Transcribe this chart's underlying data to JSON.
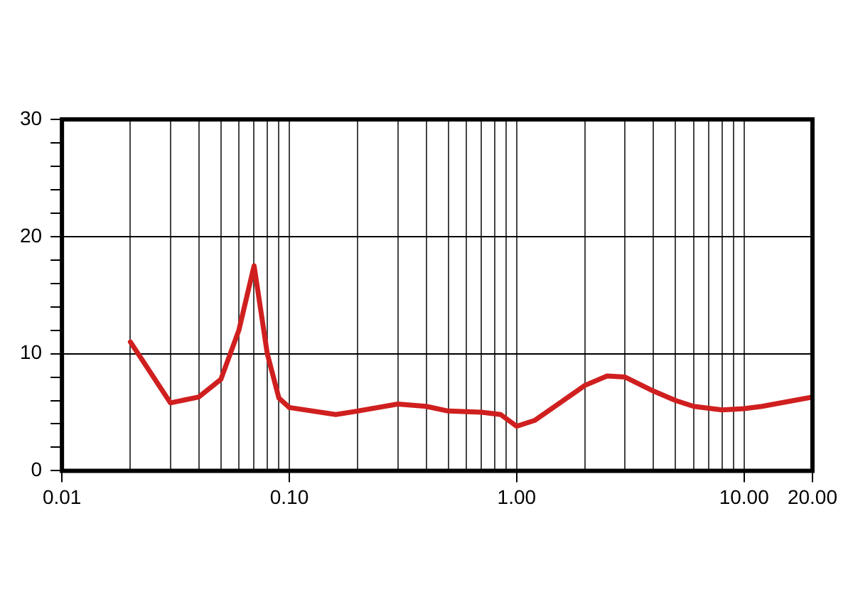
{
  "chart_data": {
    "type": "line",
    "x": [
      0.02,
      0.03,
      0.04,
      0.05,
      0.06,
      0.07,
      0.08,
      0.09,
      0.1,
      0.16,
      0.2,
      0.3,
      0.4,
      0.5,
      0.7,
      0.85,
      1.0,
      1.2,
      2,
      2.5,
      3,
      4,
      5,
      6,
      8,
      10,
      12,
      20
    ],
    "series": [
      {
        "color": "#d01f1f",
        "values": [
          11,
          5.8,
          6.3,
          7.8,
          12,
          17.5,
          10,
          6.2,
          5.4,
          4.8,
          5.1,
          5.7,
          5.5,
          5.1,
          5.0,
          4.8,
          3.8,
          4.3,
          7.3,
          8.1,
          8.0,
          6.8,
          6.0,
          5.5,
          5.2,
          5.3,
          5.5,
          6.3
        ]
      }
    ],
    "log": "x",
    "xlim": [
      0.01,
      20
    ],
    "xticks": [
      {
        "value": 0.01,
        "label": "0.01"
      },
      {
        "value": 0.02,
        "label": null
      },
      {
        "value": 0.03,
        "label": null
      },
      {
        "value": 0.04,
        "label": null
      },
      {
        "value": 0.05,
        "label": null
      },
      {
        "value": 0.06,
        "label": null
      },
      {
        "value": 0.07,
        "label": null
      },
      {
        "value": 0.08,
        "label": null
      },
      {
        "value": 0.09,
        "label": null
      },
      {
        "value": 0.1,
        "label": "0.10"
      },
      {
        "value": 0.2,
        "label": null
      },
      {
        "value": 0.3,
        "label": null
      },
      {
        "value": 0.4,
        "label": null
      },
      {
        "value": 0.5,
        "label": null
      },
      {
        "value": 0.6,
        "label": null
      },
      {
        "value": 0.7,
        "label": null
      },
      {
        "value": 0.8,
        "label": null
      },
      {
        "value": 0.9,
        "label": null
      },
      {
        "value": 1,
        "label": "1.00"
      },
      {
        "value": 2,
        "label": null
      },
      {
        "value": 3,
        "label": null
      },
      {
        "value": 4,
        "label": null
      },
      {
        "value": 5,
        "label": null
      },
      {
        "value": 6,
        "label": null
      },
      {
        "value": 7,
        "label": null
      },
      {
        "value": 8,
        "label": null
      },
      {
        "value": 9,
        "label": null
      },
      {
        "value": 10,
        "label": "10.00"
      },
      {
        "value": 20,
        "label": "20.00"
      }
    ],
    "ylim": [
      0,
      30
    ],
    "yticks": [
      0,
      {
        "value": 2,
        "label": null
      },
      {
        "value": 4,
        "label": null
      },
      {
        "value": 6,
        "label": null
      },
      {
        "value": 8,
        "label": null
      },
      10,
      {
        "value": 12,
        "label": null
      },
      {
        "value": 14,
        "label": null
      },
      {
        "value": 16,
        "label": null
      },
      {
        "value": 18,
        "label": null
      },
      20,
      {
        "value": 22,
        "label": null
      },
      {
        "value": 24,
        "label": null
      },
      {
        "value": 26,
        "label": null
      },
      {
        "value": 28,
        "label": null
      },
      30
    ],
    "grid": true,
    "marker": "none",
    "line_style": "solid",
    "legend": false
  }
}
